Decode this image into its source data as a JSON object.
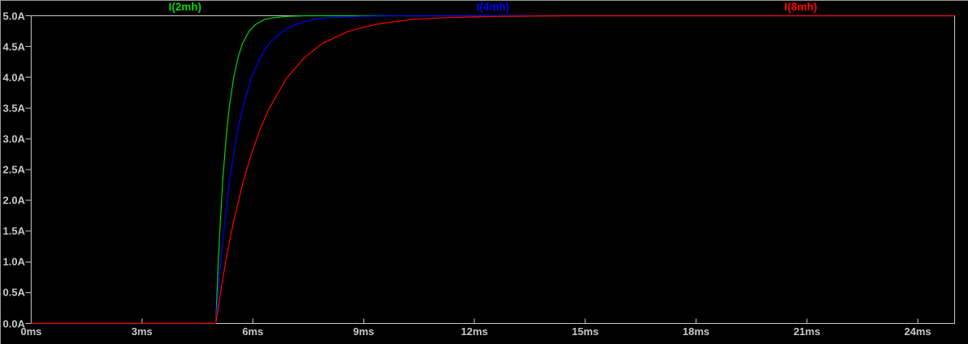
{
  "window": {
    "background": "#000000",
    "border_color": "#9a9a9a"
  },
  "chart_data": {
    "type": "line",
    "grid": false,
    "legend_position": "top",
    "background": "#000000",
    "axis_color": "#c8c8c8",
    "x_axis": {
      "unit": "ms",
      "min": 0,
      "max": 25,
      "ticks": [
        {
          "v": 0,
          "label": "0ms"
        },
        {
          "v": 3,
          "label": "3ms"
        },
        {
          "v": 6,
          "label": "6ms"
        },
        {
          "v": 9,
          "label": "9ms"
        },
        {
          "v": 12,
          "label": "12ms"
        },
        {
          "v": 15,
          "label": "15ms"
        },
        {
          "v": 18,
          "label": "18ms"
        },
        {
          "v": 21,
          "label": "21ms"
        },
        {
          "v": 24,
          "label": "24ms"
        }
      ]
    },
    "y_axis": {
      "unit": "A",
      "min": 0,
      "max": 5,
      "ticks": [
        {
          "v": 0.0,
          "label": "0.0A"
        },
        {
          "v": 0.5,
          "label": "0.5A"
        },
        {
          "v": 1.0,
          "label": "1.0A"
        },
        {
          "v": 1.5,
          "label": "1.5A"
        },
        {
          "v": 2.0,
          "label": "2.0A"
        },
        {
          "v": 2.5,
          "label": "2.5A"
        },
        {
          "v": 3.0,
          "label": "3.0A"
        },
        {
          "v": 3.5,
          "label": "3.5A"
        },
        {
          "v": 4.0,
          "label": "4.0A"
        },
        {
          "v": 4.5,
          "label": "4.5A"
        },
        {
          "v": 5.0,
          "label": "5.0A"
        }
      ]
    },
    "step_time_ms": 5,
    "final_current_A": 5,
    "series": [
      {
        "name": "I(2mh)",
        "color": "#00d400",
        "tau_ms": 0.3,
        "points": [
          [
            0,
            0
          ],
          [
            5,
            0
          ],
          [
            5.03,
            0.48
          ],
          [
            5.06,
            0.91
          ],
          [
            5.09,
            1.3
          ],
          [
            5.12,
            1.65
          ],
          [
            5.18,
            2.26
          ],
          [
            5.24,
            2.75
          ],
          [
            5.3,
            3.16
          ],
          [
            5.36,
            3.49
          ],
          [
            5.48,
            3.99
          ],
          [
            5.6,
            4.32
          ],
          [
            5.72,
            4.55
          ],
          [
            5.9,
            4.75
          ],
          [
            6.08,
            4.86
          ],
          [
            6.32,
            4.94
          ],
          [
            6.56,
            4.97
          ],
          [
            6.92,
            4.99
          ],
          [
            7.4,
            5.0
          ],
          [
            8.0,
            5.0
          ],
          [
            25,
            5.0
          ]
        ]
      },
      {
        "name": "I(4mh)",
        "color": "#0000ff",
        "tau_ms": 0.6,
        "points": [
          [
            0,
            0
          ],
          [
            5,
            0
          ],
          [
            5.06,
            0.48
          ],
          [
            5.12,
            0.91
          ],
          [
            5.18,
            1.3
          ],
          [
            5.24,
            1.65
          ],
          [
            5.36,
            2.26
          ],
          [
            5.48,
            2.75
          ],
          [
            5.6,
            3.16
          ],
          [
            5.72,
            3.49
          ],
          [
            5.96,
            3.99
          ],
          [
            6.2,
            4.32
          ],
          [
            6.44,
            4.55
          ],
          [
            6.8,
            4.75
          ],
          [
            7.16,
            4.86
          ],
          [
            7.64,
            4.94
          ],
          [
            8.12,
            4.97
          ],
          [
            8.84,
            4.99
          ],
          [
            9.8,
            5.0
          ],
          [
            11.0,
            5.0
          ],
          [
            25,
            5.0
          ]
        ]
      },
      {
        "name": "I(8mh)",
        "color": "#ff0000",
        "tau_ms": 1.2,
        "points": [
          [
            0,
            0
          ],
          [
            5,
            0
          ],
          [
            5.12,
            0.48
          ],
          [
            5.24,
            0.91
          ],
          [
            5.36,
            1.3
          ],
          [
            5.48,
            1.65
          ],
          [
            5.72,
            2.26
          ],
          [
            5.96,
            2.75
          ],
          [
            6.2,
            3.16
          ],
          [
            6.44,
            3.49
          ],
          [
            6.92,
            3.99
          ],
          [
            7.4,
            4.32
          ],
          [
            7.88,
            4.55
          ],
          [
            8.6,
            4.75
          ],
          [
            9.32,
            4.86
          ],
          [
            10.28,
            4.94
          ],
          [
            11.24,
            4.97
          ],
          [
            12.68,
            4.99
          ],
          [
            14.6,
            5.0
          ],
          [
            17.0,
            5.0
          ],
          [
            25,
            5.0
          ]
        ]
      }
    ]
  }
}
